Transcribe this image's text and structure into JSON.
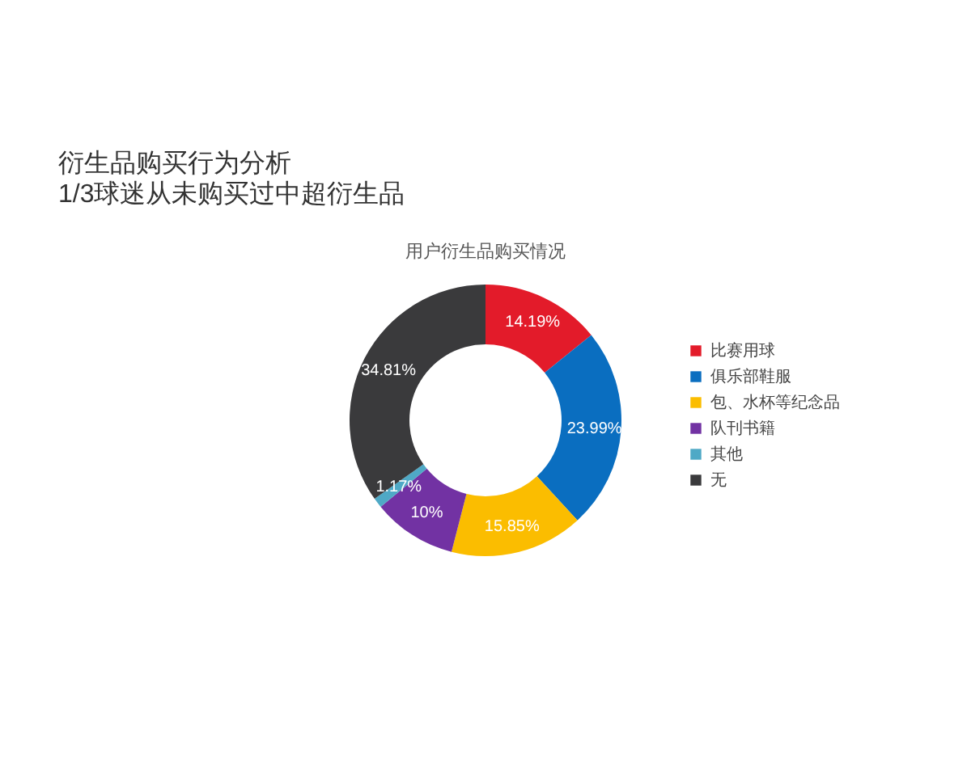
{
  "chart_data": {
    "type": "donut",
    "title": "衍生品购买行为分析",
    "subtitle": "1/3球迷从未购买过中超衍生品",
    "annotations": [
      "用户衍生品购买情况"
    ],
    "categories": [
      "比赛用球",
      "俱乐部鞋服",
      "包、水杯等纪念品",
      "队刊书籍",
      "其他",
      "无"
    ],
    "values": [
      14.19,
      23.99,
      15.85,
      10,
      1.17,
      34.81
    ],
    "value_labels": [
      "14.19%",
      "23.99%",
      "15.85%",
      "10%",
      "1.17%",
      "34.81%"
    ],
    "colors": [
      "#e31b2a",
      "#0a6ec0",
      "#fbbd00",
      "#7232a3",
      "#4fa9c6",
      "#3a3a3c"
    ],
    "legend": "right"
  }
}
